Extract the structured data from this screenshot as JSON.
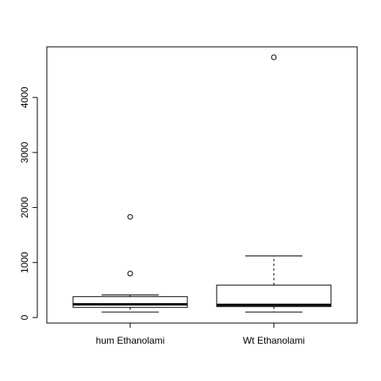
{
  "chart_data": {
    "type": "boxplot",
    "title": "",
    "xlabel": "",
    "ylabel": "",
    "categories": [
      "hum Ethanolami",
      "Wt Ethanolami"
    ],
    "ylim": [
      -100,
      4920
    ],
    "y_ticks": [
      0,
      1000,
      2000,
      3000,
      4000
    ],
    "y_tick_labels": [
      "0",
      "1000",
      "2000",
      "3000",
      "4000"
    ],
    "boxes": [
      {
        "name": "hum Ethanolami",
        "whisker_low": 100,
        "q1": 185,
        "median": 240,
        "q3": 380,
        "whisker_high": 410,
        "outliers": [
          800,
          1830
        ]
      },
      {
        "name": "Wt Ethanolami",
        "whisker_low": 100,
        "q1": 200,
        "median": 230,
        "q3": 590,
        "whisker_high": 1120,
        "outliers": [
          4730
        ]
      }
    ],
    "grid": false
  }
}
